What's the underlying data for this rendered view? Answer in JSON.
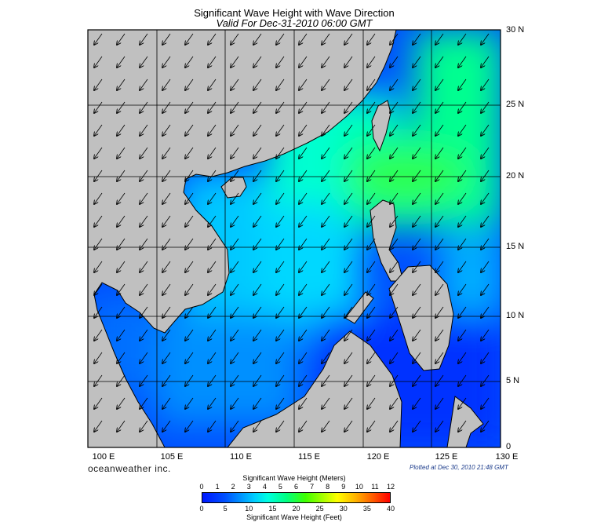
{
  "title": "Significant Wave Height with Wave Direction",
  "subtitle": "Valid For Dec-31-2010 06:00 GMT",
  "brand": "oceanweather inc.",
  "plotted": "Plotted at Dec 30, 2010 21:48 GMT",
  "longitudes": [
    "100 E",
    "105 E",
    "110 E",
    "115 E",
    "120 E",
    "125 E",
    "130 E"
  ],
  "latitudes": [
    "30 N",
    "25 N",
    "20 N",
    "15 N",
    "10 N",
    "5 N",
    "0"
  ],
  "legend": {
    "meters_title": "Significant Wave Height (Meters)",
    "feet_title": "Significant Wave Height (Feet)",
    "meters_ticks": [
      "0",
      "1",
      "2",
      "3",
      "4",
      "5",
      "6",
      "7",
      "8",
      "9",
      "10",
      "11",
      "12"
    ],
    "feet_ticks": [
      "0",
      "5",
      "10",
      "15",
      "20",
      "25",
      "30",
      "35",
      "40"
    ]
  },
  "colors": {
    "land": "#c0c0c0",
    "coast": "#000000",
    "low": "#0018ff",
    "mid": "#00ffe0",
    "high": "#40ff00",
    "max": "#ff0000"
  }
}
